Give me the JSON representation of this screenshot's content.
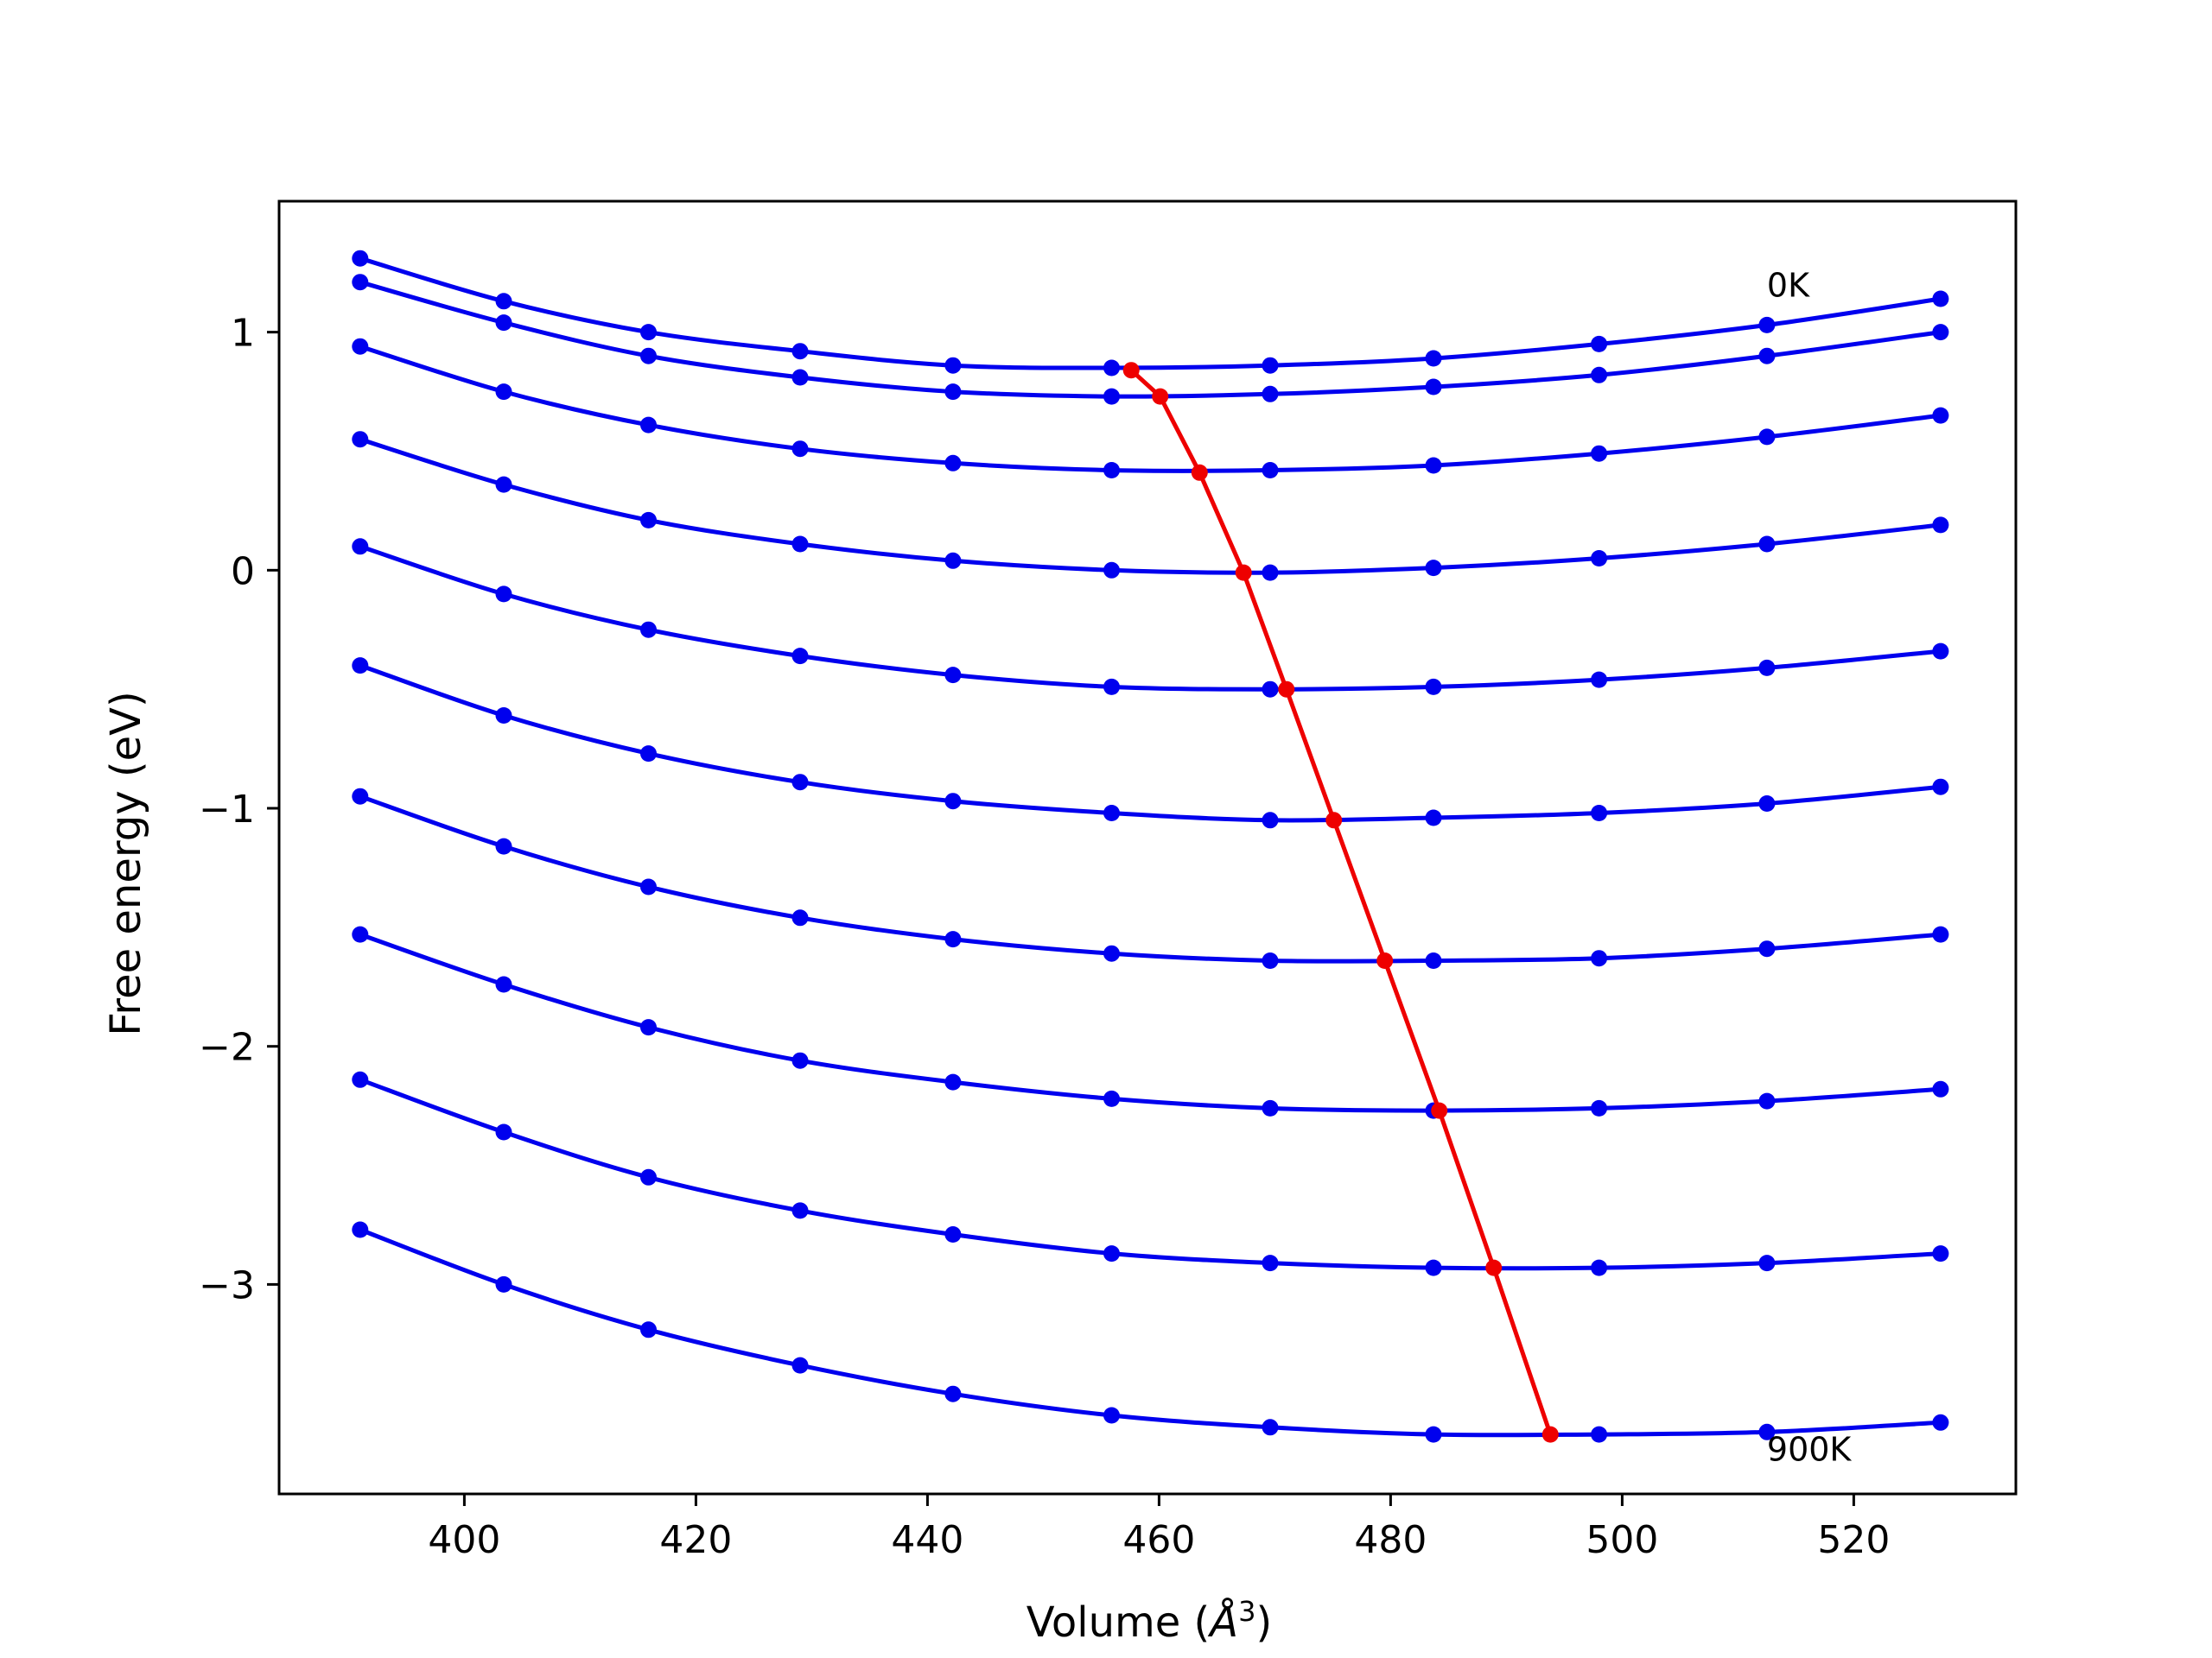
{
  "chart_data": {
    "type": "line",
    "xlabel": "Volume",
    "xlabel_unit_base": "Å",
    "xlabel_unit_exp": "3",
    "ylabel": "Free energy (eV)",
    "xlim": [
      384,
      534
    ],
    "ylim": [
      -3.88,
      1.55
    ],
    "x_ticks": [
      400,
      420,
      440,
      460,
      480,
      500,
      520
    ],
    "x_tick_labels": [
      "400",
      "420",
      "440",
      "460",
      "480",
      "500",
      "520"
    ],
    "y_ticks": [
      1,
      0,
      -1,
      -2,
      -3
    ],
    "y_tick_labels": [
      "1",
      "0",
      "−1",
      "−2",
      "−3"
    ],
    "grid": false,
    "annotations": [
      {
        "text": "0K",
        "x": 512.5,
        "y": 1.2
      },
      {
        "text": "900K",
        "x": 512.5,
        "y": -3.69
      }
    ],
    "x": [
      391.0,
      403.4,
      415.9,
      429.0,
      442.2,
      455.9,
      469.6,
      483.7,
      498.0,
      512.5,
      527.5
    ],
    "series": [
      {
        "values": [
          1.31,
          1.13,
          1.0,
          0.92,
          0.86,
          0.85,
          0.86,
          0.89,
          0.95,
          1.03,
          1.14
        ]
      },
      {
        "values": [
          1.21,
          1.04,
          0.9,
          0.81,
          0.75,
          0.73,
          0.74,
          0.77,
          0.82,
          0.9,
          1.0
        ]
      },
      {
        "values": [
          0.94,
          0.75,
          0.61,
          0.51,
          0.45,
          0.42,
          0.42,
          0.44,
          0.49,
          0.56,
          0.65
        ]
      },
      {
        "values": [
          0.55,
          0.36,
          0.21,
          0.11,
          0.04,
          0.0,
          -0.01,
          0.01,
          0.05,
          0.11,
          0.19
        ]
      },
      {
        "values": [
          0.1,
          -0.1,
          -0.25,
          -0.36,
          -0.44,
          -0.49,
          -0.5,
          -0.49,
          -0.46,
          -0.41,
          -0.34
        ]
      },
      {
        "values": [
          -0.4,
          -0.61,
          -0.77,
          -0.89,
          -0.97,
          -1.02,
          -1.05,
          -1.04,
          -1.02,
          -0.98,
          -0.91
        ]
      },
      {
        "values": [
          -0.95,
          -1.16,
          -1.33,
          -1.46,
          -1.55,
          -1.61,
          -1.64,
          -1.64,
          -1.63,
          -1.59,
          -1.53
        ]
      },
      {
        "values": [
          -1.53,
          -1.74,
          -1.92,
          -2.06,
          -2.15,
          -2.22,
          -2.26,
          -2.27,
          -2.26,
          -2.23,
          -2.18
        ]
      },
      {
        "values": [
          -2.14,
          -2.36,
          -2.55,
          -2.69,
          -2.79,
          -2.87,
          -2.91,
          -2.93,
          -2.93,
          -2.91,
          -2.87
        ]
      },
      {
        "values": [
          -2.77,
          -3.0,
          -3.19,
          -3.34,
          -3.46,
          -3.55,
          -3.6,
          -3.63,
          -3.63,
          -3.62,
          -3.58
        ]
      }
    ],
    "minima": {
      "x": [
        457.6,
        460.1,
        463.5,
        467.3,
        471.0,
        475.1,
        479.5,
        484.2,
        488.9,
        493.8
      ],
      "y": [
        0.84,
        0.73,
        0.41,
        -0.01,
        -0.5,
        -1.05,
        -1.64,
        -2.27,
        -2.93,
        -3.63
      ]
    },
    "colors": {
      "series": "#0000ee",
      "minima": "#ee0000",
      "frame": "#000000",
      "background": "#ffffff"
    }
  }
}
